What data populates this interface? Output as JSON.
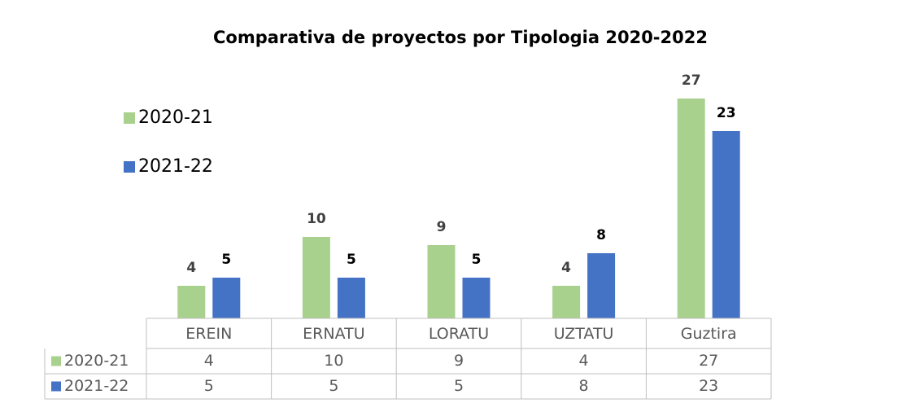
{
  "chart_data": {
    "type": "bar",
    "title": "Comparativa de proyectos por Tipologia  2020-2022",
    "categories": [
      "EREIN",
      "ERNATU",
      "LORATU",
      "UZTATU",
      "Guztira"
    ],
    "series": [
      {
        "name": "2020-21",
        "color": "#a9d18e",
        "values": [
          4,
          10,
          9,
          4,
          27
        ]
      },
      {
        "name": "2021-22",
        "color": "#4472c4",
        "values": [
          5,
          5,
          5,
          8,
          23
        ]
      }
    ],
    "legend": "left",
    "data_table": true
  }
}
